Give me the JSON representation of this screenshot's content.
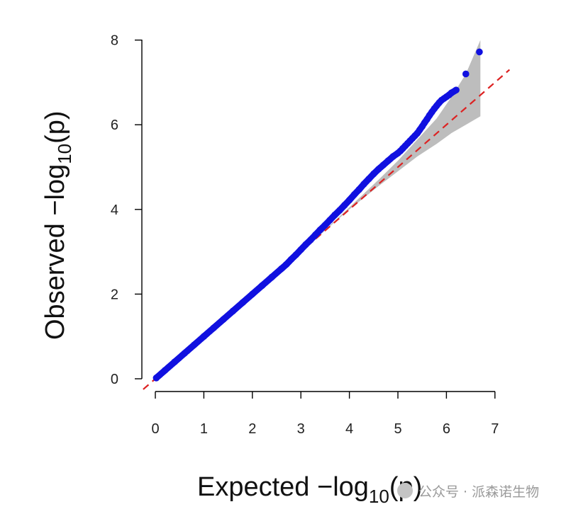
{
  "chart_data": {
    "type": "scatter",
    "title": "",
    "xlabel": {
      "prefix": "Expected  −log",
      "sub": "10",
      "suffix": "(p)"
    },
    "ylabel": {
      "prefix": "Observed  −log",
      "sub": "10",
      "suffix": "(p)"
    },
    "xlim": [
      0,
      7
    ],
    "ylim": [
      0,
      8
    ],
    "x_ticks": [
      0,
      1,
      2,
      3,
      4,
      5,
      6,
      7
    ],
    "y_ticks": [
      0,
      2,
      4,
      6,
      8
    ],
    "grid": false,
    "legend": "none",
    "reference_line": {
      "slope": 1,
      "intercept": 0,
      "style": "dashed",
      "color": "#dd2222"
    },
    "confidence_band": {
      "color": "#bdbdbd",
      "x": [
        3.2,
        4.0,
        4.6,
        5.0,
        5.4,
        5.8,
        6.1,
        6.4,
        6.7
      ],
      "lower": [
        3.2,
        4.0,
        4.55,
        4.9,
        5.25,
        5.55,
        5.8,
        6.0,
        6.2
      ],
      "upper": [
        3.2,
        4.05,
        4.7,
        5.15,
        5.65,
        6.15,
        6.65,
        7.2,
        8.0
      ]
    },
    "points_color": "#1010e0",
    "points": {
      "x": [
        0.02,
        0.2,
        0.4,
        0.6,
        0.8,
        1.0,
        1.2,
        1.4,
        1.6,
        1.8,
        2.0,
        2.2,
        2.4,
        2.6,
        2.7,
        2.8,
        2.9,
        3.0,
        3.1,
        3.2,
        3.3,
        3.4,
        3.5,
        3.6,
        3.7,
        3.8,
        3.9,
        4.0,
        4.1,
        4.2,
        4.3,
        4.4,
        4.5,
        4.6,
        4.7,
        4.8,
        4.9,
        5.0,
        5.05,
        5.1,
        5.15,
        5.2,
        5.25,
        5.3,
        5.35,
        5.4,
        5.45,
        5.5,
        5.55,
        5.6,
        5.65,
        5.7,
        5.75,
        5.8,
        5.85,
        5.9,
        5.95,
        6.0,
        6.05,
        6.1,
        6.2,
        6.4,
        6.68
      ],
      "y": [
        0.02,
        0.2,
        0.4,
        0.6,
        0.8,
        1.0,
        1.2,
        1.4,
        1.6,
        1.8,
        2.0,
        2.2,
        2.4,
        2.6,
        2.7,
        2.82,
        2.93,
        3.05,
        3.17,
        3.28,
        3.4,
        3.52,
        3.63,
        3.75,
        3.87,
        3.98,
        4.1,
        4.22,
        4.35,
        4.47,
        4.6,
        4.72,
        4.84,
        4.95,
        5.05,
        5.15,
        5.25,
        5.33,
        5.38,
        5.44,
        5.5,
        5.56,
        5.62,
        5.68,
        5.74,
        5.8,
        5.88,
        5.96,
        6.05,
        6.13,
        6.22,
        6.3,
        6.38,
        6.45,
        6.52,
        6.58,
        6.62,
        6.66,
        6.7,
        6.75,
        6.82,
        7.2,
        7.72
      ]
    }
  },
  "watermark": {
    "text": "公众号 · 派森诺生物"
  }
}
